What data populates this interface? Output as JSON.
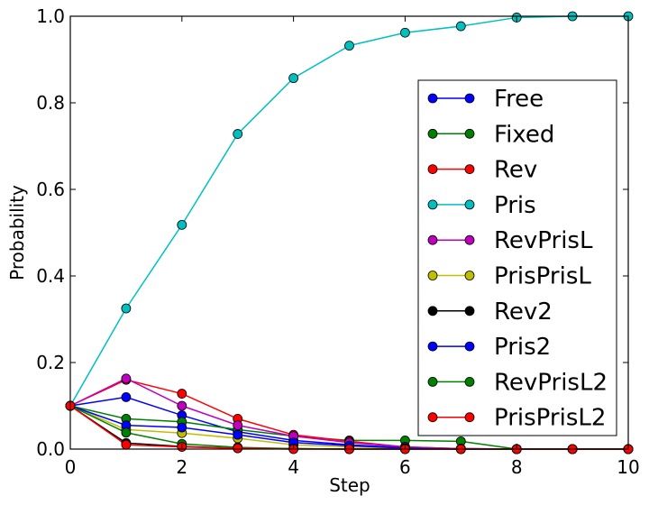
{
  "chart_data": {
    "type": "line",
    "xlabel": "Step",
    "ylabel": "Probability",
    "xlim": [
      0,
      10
    ],
    "ylim": [
      0,
      1.0
    ],
    "xticks": [
      0,
      2,
      4,
      6,
      8,
      10
    ],
    "yticks": [
      0.0,
      0.2,
      0.4,
      0.6,
      0.8,
      1.0
    ],
    "xtick_labels": [
      "0",
      "2",
      "4",
      "6",
      "8",
      "10"
    ],
    "ytick_labels": [
      "0.0",
      "0.2",
      "0.4",
      "0.6",
      "0.8",
      "1.0"
    ],
    "grid": false,
    "legend_position": "right",
    "x": [
      0,
      1,
      2,
      3,
      4,
      5,
      6,
      7,
      8,
      9,
      10
    ],
    "series": [
      {
        "name": "Free",
        "color": "#0000ff",
        "values": [
          0.1,
          0.12,
          0.078,
          0.04,
          0.02,
          0.01,
          0.003,
          0.001,
          0.0,
          0.0,
          0.0
        ]
      },
      {
        "name": "Fixed",
        "color": "#008000",
        "values": [
          0.1,
          0.07,
          0.063,
          0.045,
          0.03,
          0.02,
          0.02,
          0.018,
          0.0,
          0.0,
          0.0
        ]
      },
      {
        "name": "Rev",
        "color": "#ff0000",
        "values": [
          0.1,
          0.16,
          0.128,
          0.07,
          0.033,
          0.018,
          0.005,
          0.001,
          0.0,
          0.0,
          0.0
        ]
      },
      {
        "name": "Pris",
        "color": "#00bfbf",
        "values": [
          0.1,
          0.325,
          0.518,
          0.728,
          0.857,
          0.932,
          0.962,
          0.977,
          0.997,
          1.0,
          1.0
        ]
      },
      {
        "name": "RevPrisL",
        "color": "#bf00bf",
        "values": [
          0.1,
          0.163,
          0.1,
          0.055,
          0.03,
          0.015,
          0.005,
          0.001,
          0.0,
          0.0,
          0.0
        ]
      },
      {
        "name": "PrisPrisL",
        "color": "#bfbf00",
        "values": [
          0.1,
          0.045,
          0.037,
          0.025,
          0.01,
          0.005,
          0.002,
          0.0,
          0.0,
          0.0,
          0.0
        ]
      },
      {
        "name": "Rev2",
        "color": "#000000",
        "values": [
          0.1,
          0.014,
          0.006,
          0.002,
          0.001,
          0.0,
          0.0,
          0.0,
          0.0,
          0.0,
          0.0
        ]
      },
      {
        "name": "Pris2",
        "color": "#0000ff",
        "values": [
          0.1,
          0.055,
          0.05,
          0.033,
          0.015,
          0.008,
          0.002,
          0.0,
          0.0,
          0.0,
          0.0
        ]
      },
      {
        "name": "RevPrisL2",
        "color": "#008000",
        "values": [
          0.1,
          0.038,
          0.012,
          0.004,
          0.001,
          0.0,
          0.0,
          0.0,
          0.0,
          0.0,
          0.0
        ]
      },
      {
        "name": "PrisPrisL2",
        "color": "#ff0000",
        "values": [
          0.1,
          0.01,
          0.005,
          0.002,
          0.0,
          0.0,
          0.0,
          0.0,
          0.0,
          0.0,
          0.0
        ]
      }
    ]
  }
}
